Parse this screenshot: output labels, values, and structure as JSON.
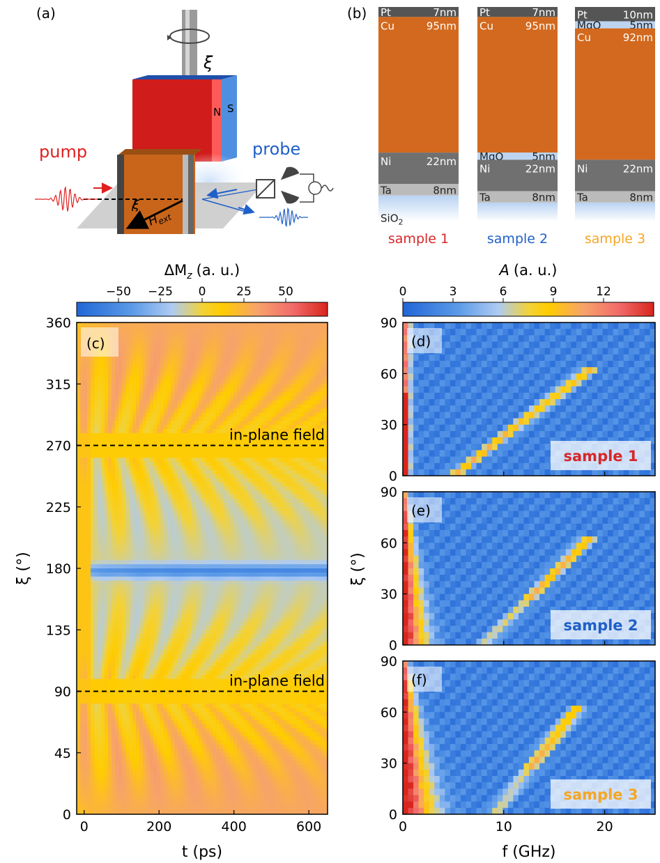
{
  "panel_labels": {
    "a": "(a)",
    "b": "(b)",
    "c": "(c)",
    "d": "(d)",
    "e": "(e)",
    "f": "(f)"
  },
  "setup": {
    "pump": "pump",
    "probe": "probe",
    "xi": "ξ",
    "hext": "H",
    "hext_sub": "ext",
    "north": "N",
    "south": "S"
  },
  "stacks": [
    {
      "label": "sample 1",
      "color": "#d62728",
      "layers": [
        {
          "name": "Pt",
          "thickness": "7nm",
          "t": 7,
          "color": "#555555"
        },
        {
          "name": "Cu",
          "thickness": "95nm",
          "t": 95,
          "color": "#d2691e"
        },
        {
          "name": "Ni",
          "thickness": "22nm",
          "t": 22,
          "color": "#707070"
        },
        {
          "name": "Ta",
          "thickness": "8nm",
          "t": 8,
          "color": "#bbbbbb"
        }
      ],
      "substrate": "SiO",
      "substrate_sub": "2"
    },
    {
      "label": "sample 2",
      "color": "#1f5fc8",
      "layers": [
        {
          "name": "Pt",
          "thickness": "7nm",
          "t": 7,
          "color": "#555555"
        },
        {
          "name": "Cu",
          "thickness": "95nm",
          "t": 95,
          "color": "#d2691e"
        },
        {
          "name": "MgO",
          "thickness": "5nm",
          "t": 5,
          "color": "#bcd4f0"
        },
        {
          "name": "Ni",
          "thickness": "22nm",
          "t": 22,
          "color": "#707070"
        },
        {
          "name": "Ta",
          "thickness": "8nm",
          "t": 8,
          "color": "#bbbbbb"
        }
      ],
      "substrate": "",
      "substrate_sub": ""
    },
    {
      "label": "sample 3",
      "color": "#f5a623",
      "layers": [
        {
          "name": "Pt",
          "thickness": "10nm",
          "t": 10,
          "color": "#555555"
        },
        {
          "name": "MgO",
          "thickness": "5nm",
          "t": 5,
          "color": "#bcd4f0"
        },
        {
          "name": "Cu",
          "thickness": "92nm",
          "t": 92,
          "color": "#d2691e"
        },
        {
          "name": "Ni",
          "thickness": "22nm",
          "t": 22,
          "color": "#707070"
        },
        {
          "name": "Ta",
          "thickness": "8nm",
          "t": 8,
          "color": "#bbbbbb"
        }
      ],
      "substrate": "",
      "substrate_sub": ""
    }
  ],
  "colors": {
    "colormap": [
      "#2166d6",
      "#5b9ae8",
      "#aecbf3",
      "#f2d23a",
      "#ffcc00",
      "#f7a36a",
      "#f26b6b",
      "#d8261c"
    ],
    "dashed": "#000000"
  },
  "chart_data": [
    {
      "type": "heatmap",
      "panel": "(c)",
      "xlabel": "t (ps)",
      "ylabel": "ξ (°)",
      "xlim": [
        -20,
        650
      ],
      "ylim": [
        0,
        360
      ],
      "xticks": [
        0,
        200,
        400,
        600
      ],
      "yticks": [
        0,
        45,
        90,
        135,
        180,
        225,
        270,
        315,
        360
      ],
      "colorbar": {
        "label": "ΔM",
        "label_sub": "z",
        "unit": "(a. u.)",
        "ticks": [
          -50,
          -25,
          0,
          25,
          50
        ],
        "range": [
          -75,
          75
        ]
      },
      "annotations": [
        {
          "text": "in-plane field",
          "y": 270
        },
        {
          "text": "in-plane field",
          "y": 90
        }
      ]
    },
    {
      "type": "heatmap",
      "panels": [
        "(d)",
        "(e)",
        "(f)"
      ],
      "xlabel": "f (GHz)",
      "ylabel": "ξ (°)",
      "xlim": [
        0,
        25
      ],
      "ylim": [
        0,
        90
      ],
      "xticks": [
        0,
        10,
        20
      ],
      "yticks": [
        0,
        30,
        60,
        90
      ],
      "colorbar": {
        "label": "A",
        "unit": "(a. u.)",
        "ticks": [
          0,
          3,
          6,
          9,
          12
        ],
        "range": [
          0,
          15
        ]
      },
      "series": [
        {
          "name": "sample 1",
          "fmr_at_0deg": 5,
          "fmr_at_60deg": 18
        },
        {
          "name": "sample 2",
          "fmr_at_0deg": 8,
          "fmr_at_60deg": 18
        },
        {
          "name": "sample 3",
          "fmr_at_0deg": 9,
          "fmr_at_60deg": 17
        }
      ]
    }
  ]
}
